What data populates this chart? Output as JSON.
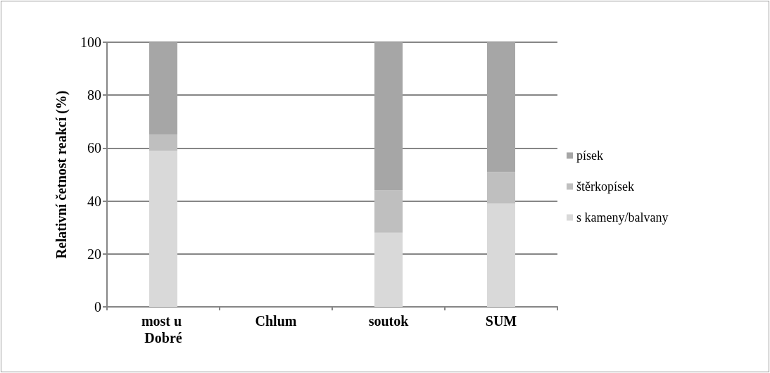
{
  "chart_data": {
    "type": "bar",
    "stacked": true,
    "ylabel": "Relativní četnost reakcí (%)",
    "categories": [
      "most u Dobré",
      "Chlum",
      "soutok",
      "SUM"
    ],
    "series": [
      {
        "name": "s kameny/balvany",
        "color": "#d9d9d9",
        "values": [
          59,
          0,
          28,
          39
        ]
      },
      {
        "name": "štěrkopísek",
        "color": "#bfbfbf",
        "values": [
          6,
          0,
          16,
          12
        ]
      },
      {
        "name": "písek",
        "color": "#a6a6a6",
        "values": [
          35,
          0,
          56,
          49
        ]
      }
    ],
    "ylim": [
      0,
      100
    ],
    "yticks": [
      0,
      20,
      40,
      60,
      80,
      100
    ],
    "grid": "y",
    "legend": "right"
  }
}
